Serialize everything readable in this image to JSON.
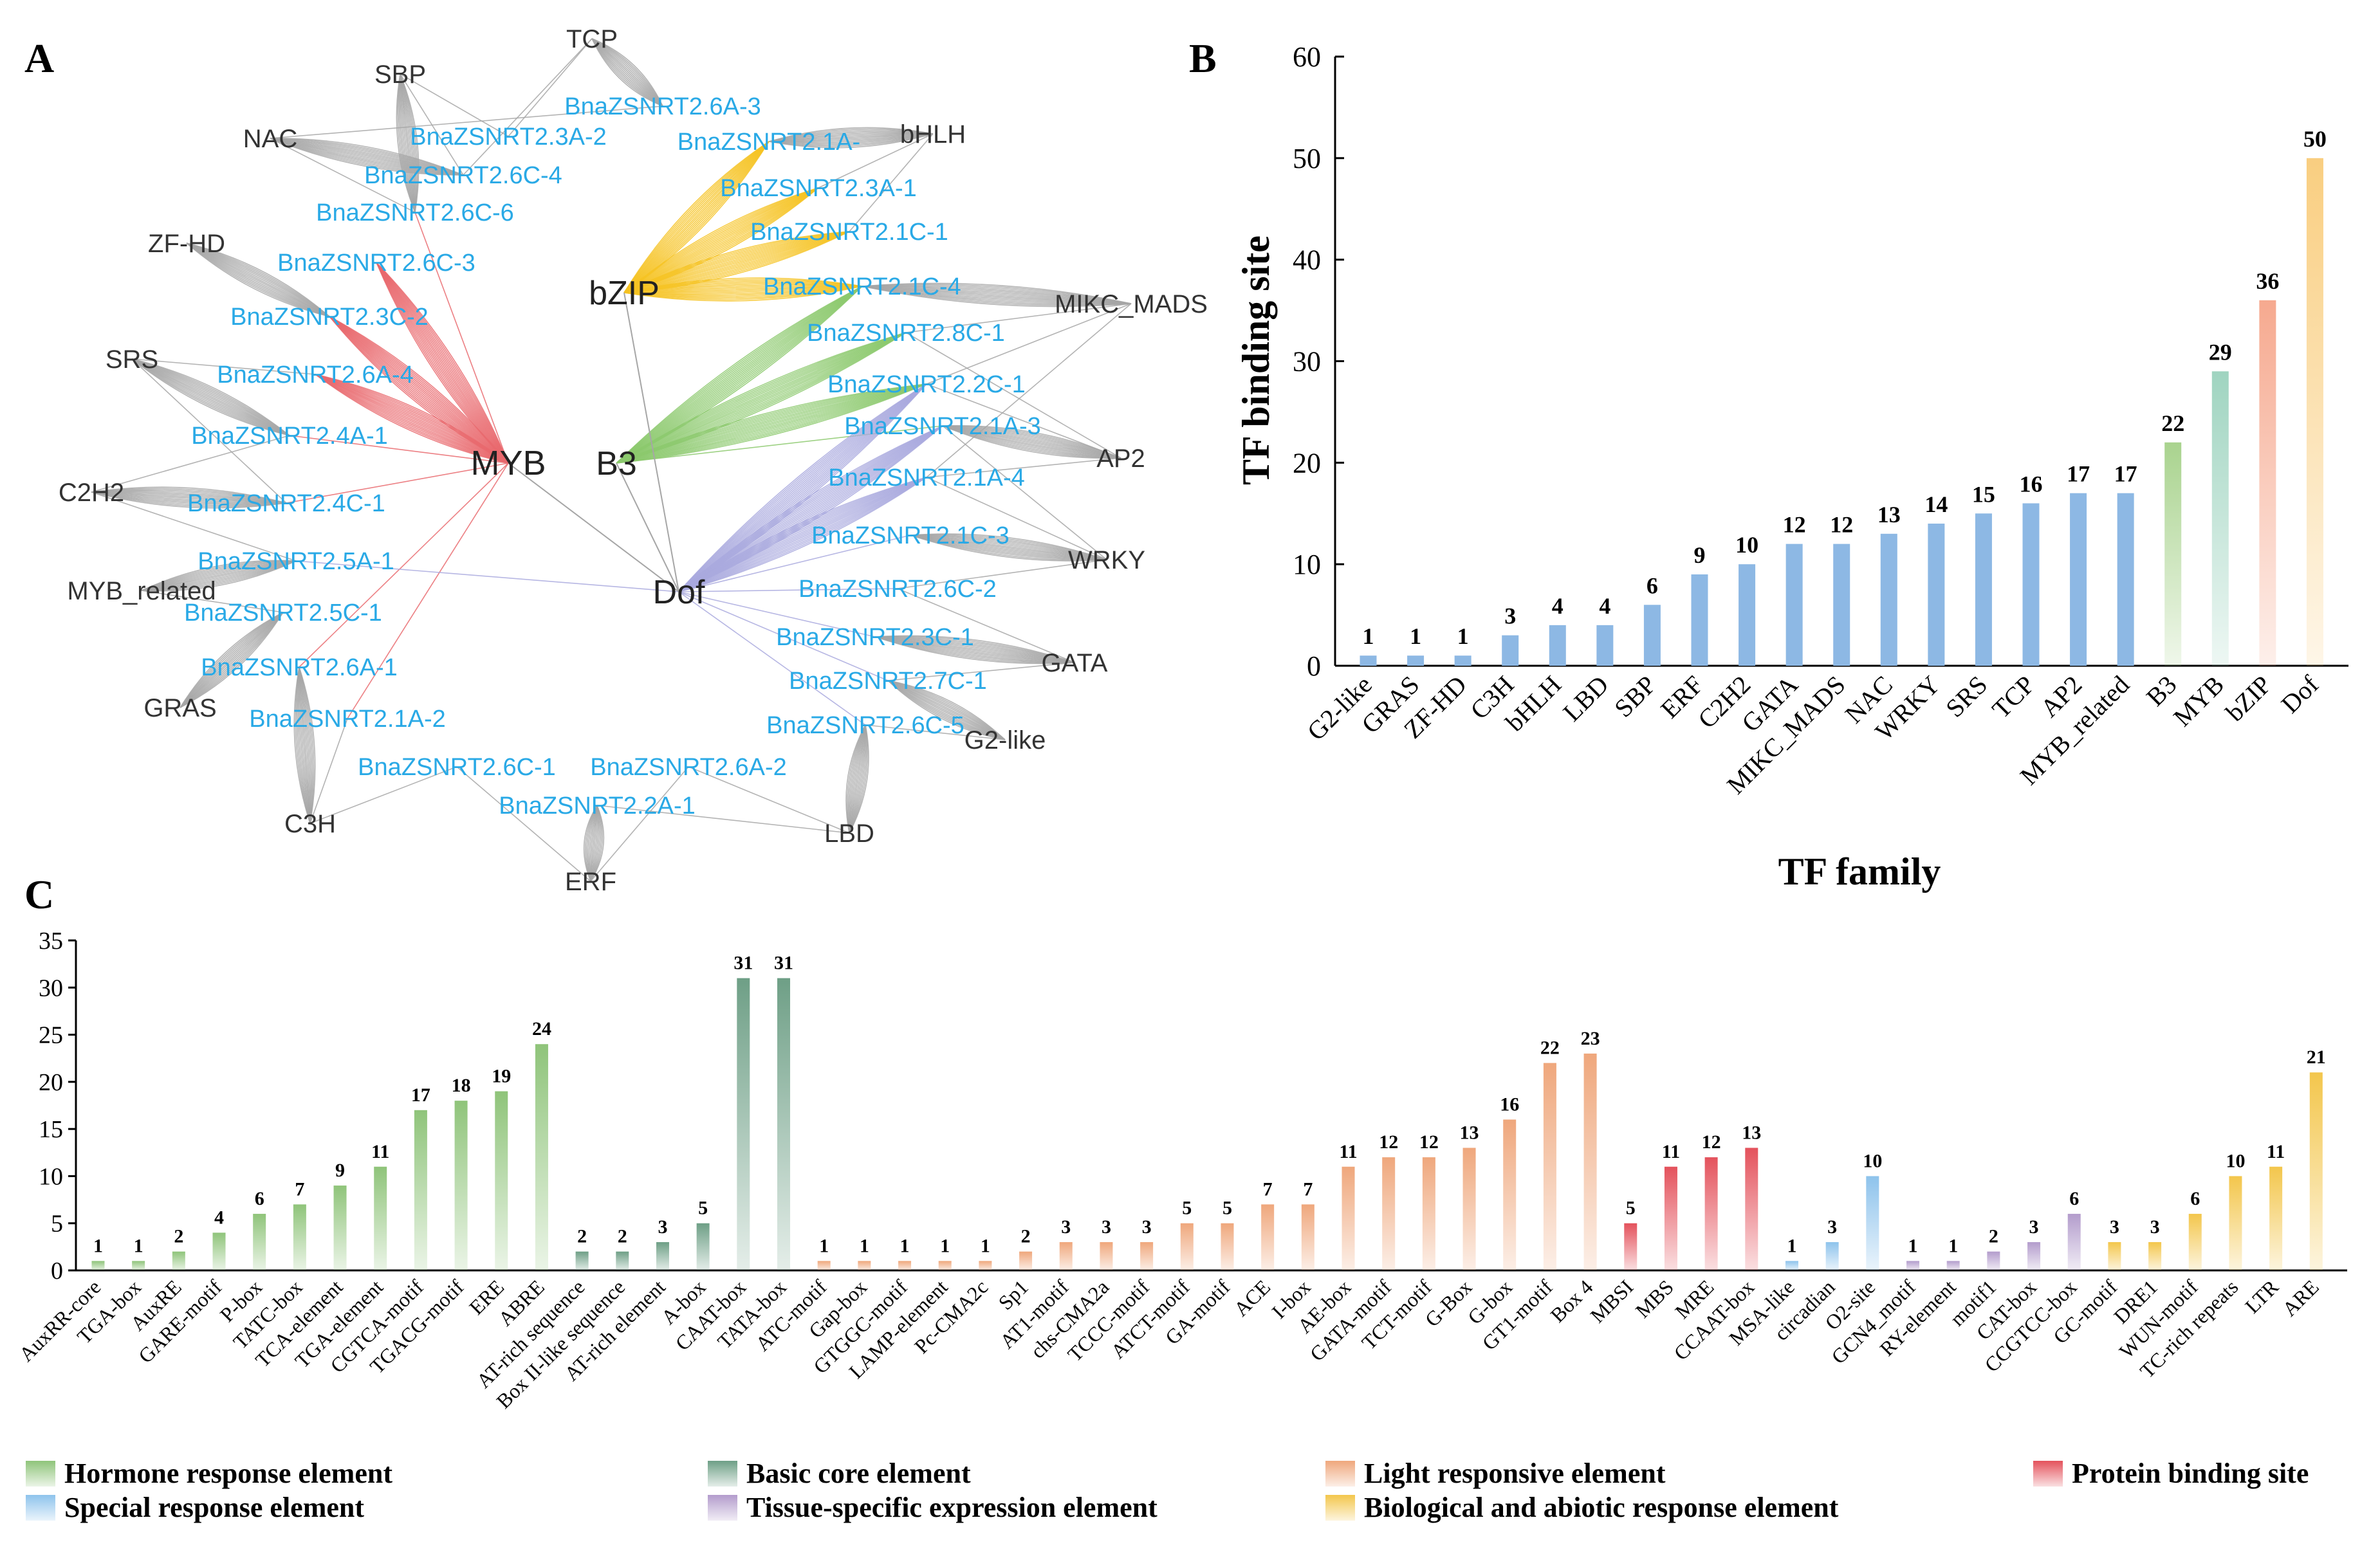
{
  "panels": {
    "a": "A",
    "b": "B",
    "c": "C"
  },
  "colors": {
    "blue_label": "#29a9e6",
    "edge_gray": "#a6a6a6",
    "myb": "#e9696d",
    "bzip": "#f6c323",
    "b3": "#8cc96d",
    "dof": "#a9a9de",
    "hormone": "#8fc47a",
    "core": "#6e9f86",
    "light": "#efa77c",
    "protein": "#e4525c",
    "special": "#8ec3ec",
    "tissue": "#b39ccc",
    "bio": "#f3c64c",
    "b_bar": "#8db8e4",
    "b_b3": "#a9d38e",
    "b_myb": "#9fd4c0",
    "b_bzip": "#f6a98f",
    "b_dof": "#f9ce80"
  },
  "network": {
    "hubs": [
      "MYB",
      "bZIP",
      "B3",
      "Dof"
    ],
    "tf_nodes": [
      "TCP",
      "SBP",
      "NAC",
      "ZF-HD",
      "SRS",
      "C2H2",
      "MYB_related",
      "GRAS",
      "C3H",
      "ERF",
      "LBD",
      "G2-like",
      "GATA",
      "WRKY",
      "AP2",
      "MIKC_MADS",
      "bHLH"
    ],
    "genes": [
      "BnaZSNRT2.6A-3",
      "BnaZSNRT2.3A-2",
      "BnaZSNRT2.1A-",
      "BnaZSNRT2.6C-4",
      "BnaZSNRT2.3A-1",
      "BnaZSNRT2.6C-6",
      "BnaZSNRT2.1C-1",
      "BnaZSNRT2.6C-3",
      "BnaZSNRT2.1C-4",
      "BnaZSNRT2.3C-2",
      "BnaZSNRT2.8C-1",
      "BnaZSNRT2.6A-4",
      "BnaZSNRT2.2C-1",
      "BnaZSNRT2.1A-3",
      "BnaZSNRT2.4A-1",
      "BnaZSNRT2.1A-4",
      "BnaZSNRT2.4C-1",
      "BnaZSNRT2.1C-3",
      "BnaZSNRT2.5A-1",
      "BnaZSNRT2.6C-2",
      "BnaZSNRT2.5C-1",
      "BnaZSNRT2.3C-1",
      "BnaZSNRT2.6A-1",
      "BnaZSNRT2.7C-1",
      "BnaZSNRT2.1A-2",
      "BnaZSNRT2.6C-5",
      "BnaZSNRT2.6C-1",
      "BnaZSNRT2.6A-2",
      "BnaZSNRT2.2A-1"
    ]
  },
  "chart_data": [
    {
      "panel": "B",
      "type": "bar",
      "title": "",
      "xlabel": "TF family",
      "ylabel": "TF binding site",
      "ylim": [
        0,
        60
      ],
      "yticks": [
        "0",
        "10",
        "20",
        "30",
        "40",
        "50",
        "60"
      ],
      "categories": [
        "G2-like",
        "GRAS",
        "ZF-HD",
        "C3H",
        "bHLH",
        "LBD",
        "SBP",
        "ERF",
        "C2H2",
        "GATA",
        "MIKC_MADS",
        "NAC",
        "WRKY",
        "SRS",
        "TCP",
        "AP2",
        "MYB_related",
        "B3",
        "MYB",
        "bZIP",
        "Dof"
      ],
      "values": [
        1,
        1,
        1,
        3,
        4,
        4,
        6,
        9,
        10,
        12,
        12,
        13,
        14,
        15,
        16,
        17,
        17,
        22,
        29,
        36,
        50
      ],
      "value_labels": [
        "1",
        "1",
        "1",
        "3",
        "4",
        "4",
        "6",
        "9",
        "10",
        "12",
        "12",
        "13",
        "14",
        "15",
        "16",
        "17",
        "17",
        "22",
        "29",
        "36",
        "50"
      ]
    },
    {
      "panel": "C",
      "type": "bar",
      "title": "",
      "xlabel": "",
      "ylabel": "",
      "ylim": [
        0,
        35
      ],
      "yticks": [
        "0",
        "5",
        "10",
        "15",
        "20",
        "25",
        "30",
        "35"
      ],
      "categories": [
        "AuxRR-core",
        "TGA-box",
        "AuxRE",
        "GARE-motif",
        "P-box",
        "TATC-box",
        "TCA-element",
        "TGA-element",
        "CGTCA-motif",
        "TGACG-motif",
        "ERE",
        "ABRE",
        "AT-rich sequence",
        "Box II-like sequence",
        "AT-rich element",
        "A-box",
        "CAAT-box",
        "TATA-box",
        "ATC-motif",
        "Gap-box",
        "GTGGC-motif",
        "LAMP-element",
        "Pc-CMA2c",
        "Sp1",
        "AT1-motif",
        "chs-CMA2a",
        "TCCC-motif",
        "ATCT-motif",
        "GA-motif",
        "ACE",
        "I-box",
        "AE-box",
        "GATA-motif",
        "TCT-motif",
        "G-Box",
        "G-box",
        "GT1-motif",
        "Box 4",
        "MBSI",
        "MBS",
        "MRE",
        "CCAAT-box",
        "MSA-like",
        "circadian",
        "O2-site",
        "GCN4_motif",
        "RY-element",
        "motif1",
        "CAT-box",
        "CCGTCC-box",
        "GC-motif",
        "DRE1",
        "WUN-motif",
        "TC-rich repeats",
        "LTR",
        "ARE"
      ],
      "values": [
        1,
        1,
        2,
        4,
        6,
        7,
        9,
        11,
        17,
        18,
        19,
        24,
        2,
        2,
        3,
        5,
        31,
        31,
        1,
        1,
        1,
        1,
        1,
        2,
        3,
        3,
        3,
        5,
        5,
        7,
        7,
        11,
        12,
        12,
        13,
        16,
        22,
        23,
        5,
        11,
        12,
        13,
        1,
        3,
        10,
        1,
        1,
        2,
        3,
        6,
        3,
        3,
        6,
        10,
        11,
        21
      ],
      "value_labels": [
        "1",
        "1",
        "2",
        "4",
        "6",
        "7",
        "9",
        "11",
        "17",
        "18",
        "19",
        "24",
        "2",
        "2",
        "3",
        "5",
        "31",
        "31",
        "1",
        "1",
        "1",
        "1",
        "1",
        "2",
        "3",
        "3",
        "3",
        "5",
        "5",
        "7",
        "7",
        "11",
        "12",
        "12",
        "13",
        "16",
        "22",
        "23",
        "5",
        "11",
        "12",
        "13",
        "1",
        "3",
        "10",
        "1",
        "1",
        "2",
        "3",
        "6",
        "3",
        "3",
        "6",
        "10",
        "11",
        "21"
      ],
      "groups": [
        "hormone",
        "hormone",
        "hormone",
        "hormone",
        "hormone",
        "hormone",
        "hormone",
        "hormone",
        "hormone",
        "hormone",
        "hormone",
        "hormone",
        "core",
        "core",
        "core",
        "core",
        "core",
        "core",
        "light",
        "light",
        "light",
        "light",
        "light",
        "light",
        "light",
        "light",
        "light",
        "light",
        "light",
        "light",
        "light",
        "light",
        "light",
        "light",
        "light",
        "light",
        "light",
        "light",
        "protein",
        "protein",
        "protein",
        "protein",
        "special",
        "special",
        "special",
        "tissue",
        "tissue",
        "tissue",
        "tissue",
        "tissue",
        "bio",
        "bio",
        "bio",
        "bio",
        "bio",
        "bio"
      ],
      "legend": [
        {
          "key": "hormone",
          "label": "Hormone response element"
        },
        {
          "key": "core",
          "label": "Basic core element"
        },
        {
          "key": "light",
          "label": "Light responsive element"
        },
        {
          "key": "protein",
          "label": "Protein binding site"
        },
        {
          "key": "special",
          "label": "Special response element"
        },
        {
          "key": "tissue",
          "label": "Tissue-specific expression element"
        },
        {
          "key": "bio",
          "label": "Biological and abiotic response element"
        }
      ]
    }
  ]
}
